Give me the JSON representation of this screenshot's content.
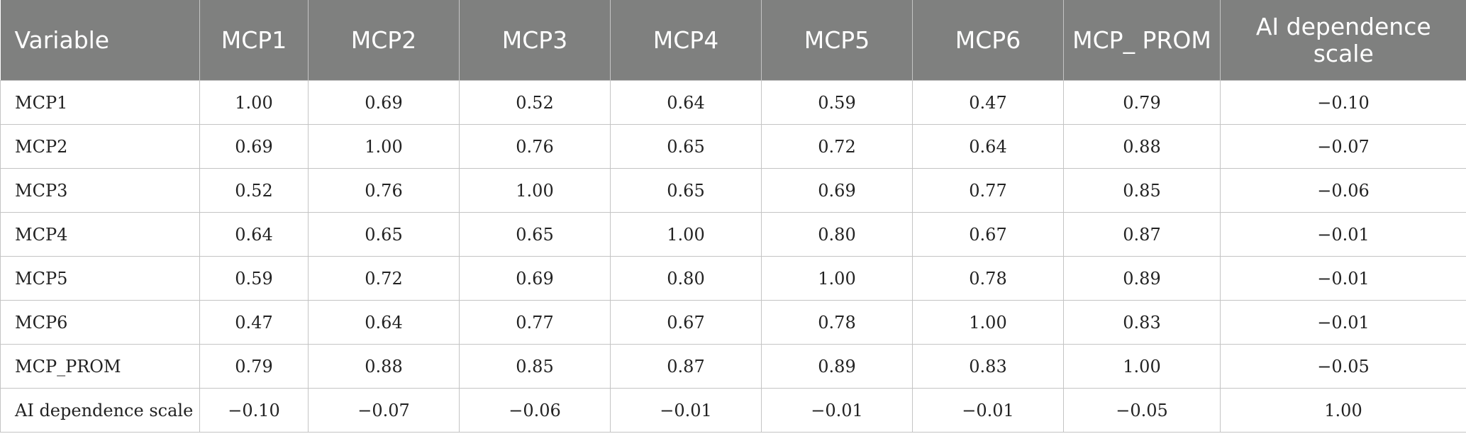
{
  "table": {
    "headers": [
      "Variable",
      "MCP1",
      "MCP2",
      "MCP3",
      "MCP4",
      "MCP5",
      "MCP6",
      "MCP_ PROM",
      "AI dependence scale"
    ],
    "rows": [
      [
        "MCP1",
        "1.00",
        "0.69",
        "0.52",
        "0.64",
        "0.59",
        "0.47",
        "0.79",
        "−0.10"
      ],
      [
        "MCP2",
        "0.69",
        "1.00",
        "0.76",
        "0.65",
        "0.72",
        "0.64",
        "0.88",
        "−0.07"
      ],
      [
        "MCP3",
        "0.52",
        "0.76",
        "1.00",
        "0.65",
        "0.69",
        "0.77",
        "0.85",
        "−0.06"
      ],
      [
        "MCP4",
        "0.64",
        "0.65",
        "0.65",
        "1.00",
        "0.80",
        "0.67",
        "0.87",
        "−0.01"
      ],
      [
        "MCP5",
        "0.59",
        "0.72",
        "0.69",
        "0.80",
        "1.00",
        "0.78",
        "0.89",
        "−0.01"
      ],
      [
        "MCP6",
        "0.47",
        "0.64",
        "0.77",
        "0.67",
        "0.78",
        "1.00",
        "0.83",
        "−0.01"
      ],
      [
        "MCP_PROM",
        "0.79",
        "0.88",
        "0.85",
        "0.87",
        "0.89",
        "0.83",
        "1.00",
        "−0.05"
      ],
      [
        "AI dependence scale",
        "−0.10",
        "−0.07",
        "−0.06",
        "−0.01",
        "−0.01",
        "−0.01",
        "−0.05",
        "1.00"
      ]
    ]
  },
  "colors": {
    "header_bg": "#7f807f",
    "header_text": "#ffffff",
    "grid_line": "#c4c4c4"
  }
}
